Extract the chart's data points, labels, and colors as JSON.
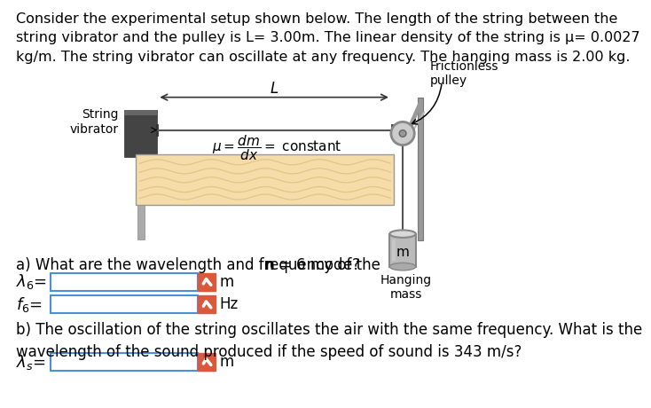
{
  "title_text": "Consider the experimental setup shown below. The length of the string between the\nstring vibrator and the pulley is L= 3.00m. The linear density of the string is μ= 0.0027\nkg/m. The string vibrator can oscillate at any frequency. The hanging mass is 2.00 kg.",
  "frictionless_pulley_label": "Frictionless\npulley",
  "string_vibrator_label": "String\nvibrator",
  "L_label": "L",
  "hanging_mass_label": "Hanging\nmass",
  "m_label": "m",
  "part_a_text1": "a) What are the wavelength and frequency of the ",
  "part_a_text2": " mode?",
  "part_a_bold": "n = 6",
  "lambda6_label": "$\\lambda_6$=",
  "lambda6_unit": "m",
  "f6_label": "$f_6$=",
  "f6_unit": "Hz",
  "part_b_text": "b) The oscillation of the string oscillates the air with the same frequency. What is the\nwavelength of the sound produced if the speed of sound is 343 m/s?",
  "lambdas_label": "$\\lambda_s$=",
  "lambdas_unit": "m",
  "bg_color": "#ffffff",
  "check_color": "#d9593a",
  "input_bg": "#ffffff",
  "box_border_color": "#4a90d9",
  "wood_color": "#f5dca8",
  "wood_grain_color": "#d4b870",
  "vibrator_dark": "#444444",
  "vibrator_mid": "#666666",
  "rod_color": "#aaaaaa",
  "pulley_color": "#cccccc",
  "pulley_edge": "#888888",
  "mass_color": "#bbbbbb",
  "mass_top_color": "#d8d8d8",
  "string_color": "#555555",
  "arrow_color": "#333333",
  "bracket_color": "#999999"
}
